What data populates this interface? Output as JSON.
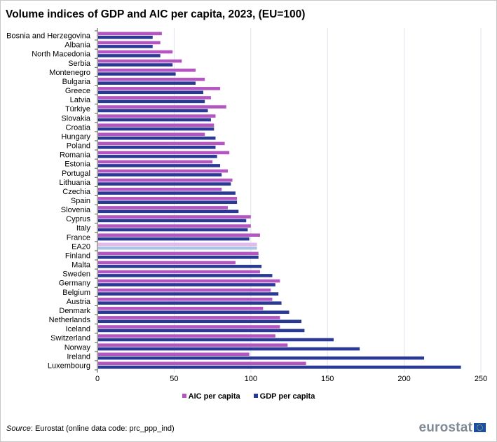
{
  "chart_data": {
    "type": "bar",
    "orientation": "horizontal",
    "title": "Volume indices of GDP and AIC per capita, 2023, (EU=100)",
    "categories": [
      "Bosnia and Herzegovina",
      "Albania",
      "North Macedonia",
      "Serbia",
      "Montenegro",
      "Bulgaria",
      "Greece",
      "Latvia",
      "Türkiye",
      "Slovakia",
      "Croatia",
      "Hungary",
      "Poland",
      "Romania",
      "Estonia",
      "Portugal",
      "Lithuania",
      "Czechia",
      "Spain",
      "Slovenia",
      "Cyprus",
      "Italy",
      "France",
      "EA20",
      "Finland",
      "Malta",
      "Sweden",
      "Germany",
      "Belgium",
      "Austria",
      "Denmark",
      "Netherlands",
      "Iceland",
      "Switzerland",
      "Norway",
      "Ireland",
      "Luxembourg"
    ],
    "series": [
      {
        "name": "AIC per capita",
        "color": "#b455c2",
        "highlight_color": "#e6b9ec",
        "values": [
          42,
          41,
          49,
          55,
          64,
          70,
          80,
          74,
          84,
          77,
          76,
          70,
          83,
          86,
          75,
          85,
          88,
          81,
          91,
          85,
          100,
          100,
          106,
          104,
          105,
          90,
          106,
          119,
          113,
          114,
          108,
          119,
          119,
          116,
          124,
          99,
          136
        ]
      },
      {
        "name": "GDP per capita",
        "color": "#2a3a94",
        "highlight_color": "#a9c3e6",
        "values": [
          36,
          36,
          41,
          49,
          51,
          64,
          69,
          70,
          72,
          74,
          76,
          77,
          77,
          78,
          80,
          81,
          87,
          90,
          91,
          92,
          97,
          98,
          99,
          104,
          105,
          107,
          114,
          116,
          118,
          120,
          125,
          133,
          135,
          154,
          171,
          213,
          237
        ]
      }
    ],
    "highlighted_category": "EA20",
    "xlim": [
      0,
      250
    ],
    "xticks": [
      0,
      50,
      100,
      150,
      200,
      250
    ],
    "grid": true,
    "legend_placement": "bottom"
  },
  "footer": {
    "source_label": "Source",
    "source_text": ": Eurostat (online data code: prc_ppp_ind)",
    "logo_text": "eurostat"
  }
}
